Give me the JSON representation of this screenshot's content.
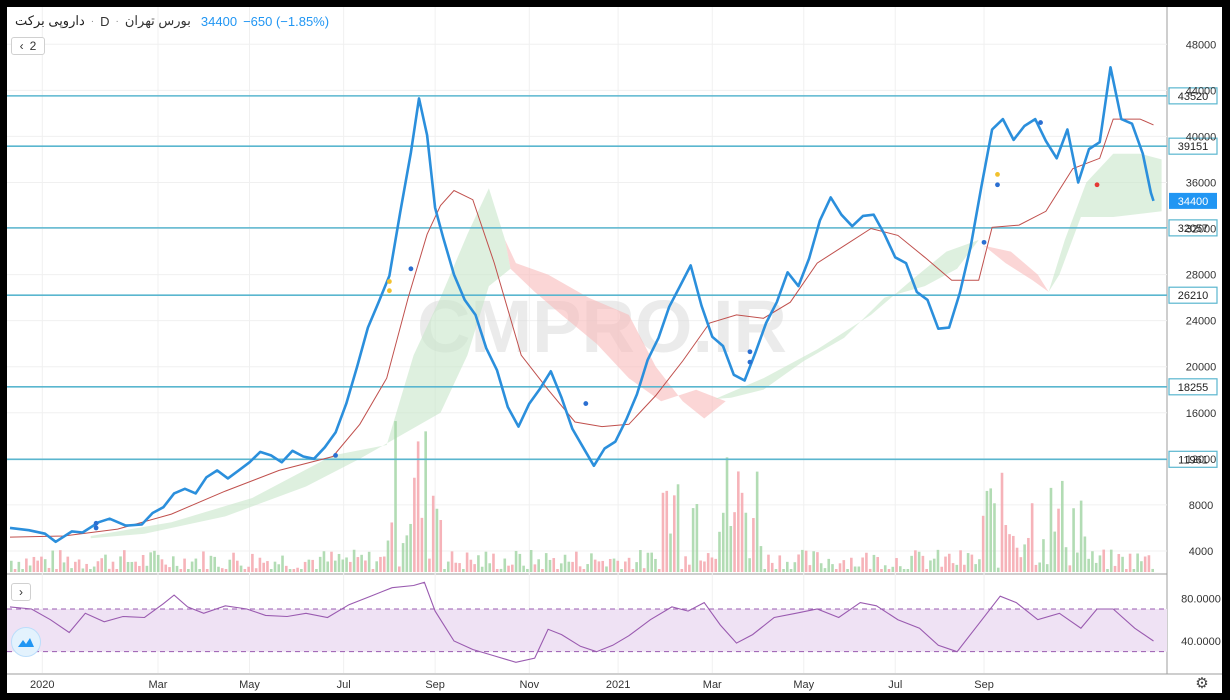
{
  "header": {
    "symbol": "داروپی برکت",
    "separator": "·",
    "interval": "D",
    "exchange": "بورس تهران",
    "price": "34400",
    "change": "−650 (−1.85%)"
  },
  "ui": {
    "collapse_chevron": "‹",
    "collapse_count": "2",
    "rsi_chevron": "›",
    "settings_icon": "⚙",
    "watermark": "CMPRO.IR"
  },
  "colors": {
    "price_line": "#2b8fdc",
    "baseline": "#c0504d",
    "cloud_green": "#c8e6c9",
    "cloud_red": "#f8bbbb",
    "hlines": "#5ab6cf",
    "rsi": "#9a5bb0",
    "rsi_band": "#efe2f4",
    "vol_up": "#a5d6a7",
    "vol_down": "#f4a6ad",
    "last_price_tag": "#2196f3"
  },
  "chart_data": [
    {
      "type": "line",
      "name": "price",
      "y_axis": {
        "ylim": [
          2000,
          49500
        ],
        "ticks": [
          "48000",
          "44000",
          "40000",
          "36000",
          "32000",
          "28000",
          "24000",
          "20000",
          "16000",
          "12000",
          "8000",
          "4000"
        ]
      },
      "x_axis": {
        "ticks": [
          "2020",
          "Mar",
          "May",
          "Jul",
          "Sep",
          "Nov",
          "2021",
          "Mar",
          "May",
          "Jul",
          "Sep"
        ]
      },
      "horizontal_levels": [
        "43520",
        "39151",
        "32057",
        "26210",
        "18255",
        "11961"
      ],
      "last_price": "34400",
      "price_series": [
        [
          0,
          6000
        ],
        [
          7,
          5800
        ],
        [
          13,
          5500
        ],
        [
          17,
          4800
        ],
        [
          23,
          5700
        ],
        [
          27,
          5600
        ],
        [
          33,
          6500
        ],
        [
          37,
          6800
        ],
        [
          43,
          6200
        ],
        [
          49,
          6300
        ],
        [
          53,
          7300
        ],
        [
          57,
          7800
        ],
        [
          61,
          9000
        ],
        [
          65,
          9400
        ],
        [
          69,
          9000
        ],
        [
          73,
          10400
        ],
        [
          77,
          11000
        ],
        [
          81,
          10300
        ],
        [
          85,
          11000
        ],
        [
          89,
          11700
        ],
        [
          93,
          12600
        ],
        [
          97,
          12300
        ],
        [
          101,
          11700
        ],
        [
          105,
          12700
        ],
        [
          109,
          12200
        ],
        [
          113,
          12000
        ],
        [
          117,
          13000
        ],
        [
          121,
          14300
        ],
        [
          125,
          16800
        ],
        [
          129,
          20000
        ],
        [
          133,
          23400
        ],
        [
          137,
          25600
        ],
        [
          141,
          27900
        ],
        [
          145,
          33400
        ],
        [
          149,
          38600
        ],
        [
          152,
          43300
        ],
        [
          155,
          40100
        ],
        [
          158,
          33800
        ],
        [
          161,
          31200
        ],
        [
          165,
          28000
        ],
        [
          169,
          25800
        ],
        [
          173,
          24500
        ],
        [
          177,
          21600
        ],
        [
          181,
          19700
        ],
        [
          185,
          16500
        ],
        [
          189,
          14800
        ],
        [
          193,
          16800
        ],
        [
          197,
          18100
        ],
        [
          201,
          19600
        ],
        [
          205,
          17300
        ],
        [
          209,
          14600
        ],
        [
          213,
          13000
        ],
        [
          217,
          11400
        ],
        [
          221,
          12900
        ],
        [
          225,
          13500
        ],
        [
          229,
          15400
        ],
        [
          233,
          17600
        ],
        [
          237,
          20600
        ],
        [
          241,
          22500
        ],
        [
          245,
          25200
        ],
        [
          249,
          27000
        ],
        [
          253,
          28800
        ],
        [
          257,
          25300
        ],
        [
          261,
          22600
        ],
        [
          265,
          21800
        ],
        [
          269,
          19300
        ],
        [
          273,
          18800
        ],
        [
          277,
          21200
        ],
        [
          281,
          23800
        ],
        [
          285,
          25600
        ],
        [
          289,
          28200
        ],
        [
          293,
          27000
        ],
        [
          297,
          29400
        ],
        [
          301,
          32700
        ],
        [
          305,
          34700
        ],
        [
          309,
          33200
        ],
        [
          313,
          32200
        ],
        [
          317,
          33100
        ],
        [
          321,
          33200
        ],
        [
          325,
          31500
        ],
        [
          329,
          29500
        ],
        [
          333,
          29000
        ],
        [
          337,
          26500
        ],
        [
          341,
          25800
        ],
        [
          345,
          23300
        ],
        [
          349,
          23400
        ],
        [
          353,
          26400
        ],
        [
          357,
          30400
        ],
        [
          361,
          35600
        ],
        [
          365,
          40600
        ],
        [
          369,
          41500
        ],
        [
          373,
          39700
        ],
        [
          377,
          40900
        ],
        [
          381,
          41500
        ],
        [
          385,
          39600
        ],
        [
          389,
          38100
        ],
        [
          393,
          40600
        ],
        [
          397,
          36000
        ],
        [
          401,
          38900
        ],
        [
          405,
          39500
        ],
        [
          409,
          46000
        ],
        [
          413,
          41500
        ],
        [
          417,
          41100
        ],
        [
          421,
          38500
        ],
        [
          424,
          35100
        ],
        [
          425,
          34400
        ]
      ],
      "baseline_series": [
        [
          0,
          5200
        ],
        [
          20,
          5300
        ],
        [
          40,
          5900
        ],
        [
          60,
          7200
        ],
        [
          80,
          9200
        ],
        [
          100,
          11000
        ],
        [
          120,
          12200
        ],
        [
          130,
          15000
        ],
        [
          140,
          19000
        ],
        [
          148,
          26000
        ],
        [
          155,
          31500
        ],
        [
          160,
          34000
        ],
        [
          165,
          35300
        ],
        [
          172,
          34500
        ],
        [
          180,
          29000
        ],
        [
          190,
          21000
        ],
        [
          200,
          18000
        ],
        [
          210,
          15200
        ],
        [
          220,
          14800
        ],
        [
          230,
          15000
        ],
        [
          240,
          17500
        ],
        [
          250,
          20500
        ],
        [
          260,
          23800
        ],
        [
          270,
          24500
        ],
        [
          280,
          24200
        ],
        [
          290,
          25600
        ],
        [
          300,
          29000
        ],
        [
          310,
          30500
        ],
        [
          320,
          32000
        ],
        [
          330,
          31400
        ],
        [
          340,
          29500
        ],
        [
          350,
          27500
        ],
        [
          360,
          27500
        ],
        [
          365,
          32100
        ],
        [
          375,
          32300
        ],
        [
          385,
          33500
        ],
        [
          395,
          37200
        ],
        [
          405,
          38100
        ],
        [
          410,
          41500
        ],
        [
          420,
          41500
        ],
        [
          425,
          41000
        ]
      ],
      "series": [
        {
          "name": "",
          "values": []
        }
      ]
    },
    {
      "type": "line",
      "name": "rsi",
      "y_axis": {
        "ticks": [
          "80.0000",
          "40.0000"
        ],
        "band": [
          30,
          70
        ],
        "ylim": [
          10,
          100
        ]
      },
      "rsi_series": [
        [
          0,
          72
        ],
        [
          8,
          70
        ],
        [
          15,
          60
        ],
        [
          22,
          48
        ],
        [
          28,
          66
        ],
        [
          35,
          58
        ],
        [
          42,
          63
        ],
        [
          50,
          62
        ],
        [
          57,
          75
        ],
        [
          61,
          83
        ],
        [
          66,
          72
        ],
        [
          72,
          66
        ],
        [
          80,
          73
        ],
        [
          88,
          70
        ],
        [
          95,
          64
        ],
        [
          103,
          63
        ],
        [
          110,
          66
        ],
        [
          118,
          62
        ],
        [
          126,
          74
        ],
        [
          134,
          82
        ],
        [
          142,
          90
        ],
        [
          150,
          92
        ],
        [
          154,
          95
        ],
        [
          158,
          68
        ],
        [
          165,
          40
        ],
        [
          172,
          32
        ],
        [
          180,
          26
        ],
        [
          188,
          20
        ],
        [
          195,
          24
        ],
        [
          200,
          51
        ],
        [
          205,
          46
        ],
        [
          212,
          35
        ],
        [
          218,
          30
        ],
        [
          224,
          36
        ],
        [
          230,
          45
        ],
        [
          238,
          60
        ],
        [
          246,
          72
        ],
        [
          252,
          68
        ],
        [
          258,
          76
        ],
        [
          264,
          55
        ],
        [
          270,
          38
        ],
        [
          276,
          46
        ],
        [
          284,
          62
        ],
        [
          292,
          66
        ],
        [
          300,
          70
        ],
        [
          308,
          62
        ],
        [
          316,
          76
        ],
        [
          322,
          73
        ],
        [
          330,
          60
        ],
        [
          338,
          52
        ],
        [
          345,
          36
        ],
        [
          352,
          30
        ],
        [
          360,
          56
        ],
        [
          368,
          82
        ],
        [
          374,
          76
        ],
        [
          382,
          60
        ],
        [
          390,
          66
        ],
        [
          398,
          52
        ],
        [
          404,
          70
        ],
        [
          410,
          70
        ],
        [
          418,
          52
        ],
        [
          425,
          40
        ]
      ]
    }
  ]
}
